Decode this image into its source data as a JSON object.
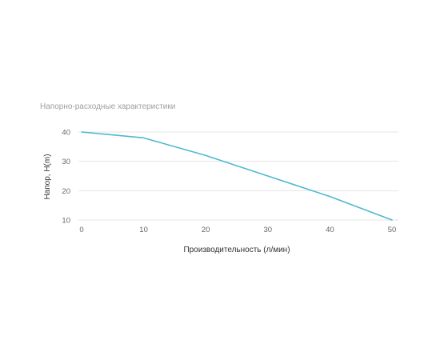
{
  "chart_data": {
    "type": "line",
    "title": "Напорно-расходные характеристики",
    "xlabel": "Производительность (л/мин)",
    "ylabel": "Напор, H(m)",
    "x": [
      0,
      10,
      20,
      30,
      40,
      50
    ],
    "series": [
      {
        "values": [
          40,
          38,
          32,
          25,
          18,
          10
        ]
      }
    ],
    "xlim": [
      0,
      50
    ],
    "ylim": [
      10,
      40
    ],
    "xticks": [
      0,
      10,
      20,
      30,
      40,
      50
    ],
    "yticks": [
      10,
      20,
      30,
      40
    ],
    "grid": true,
    "legend": "none",
    "colors": {
      "line": "#4fb8d0",
      "grid": "#e6e6e6",
      "title": "#9e9e9e"
    }
  }
}
